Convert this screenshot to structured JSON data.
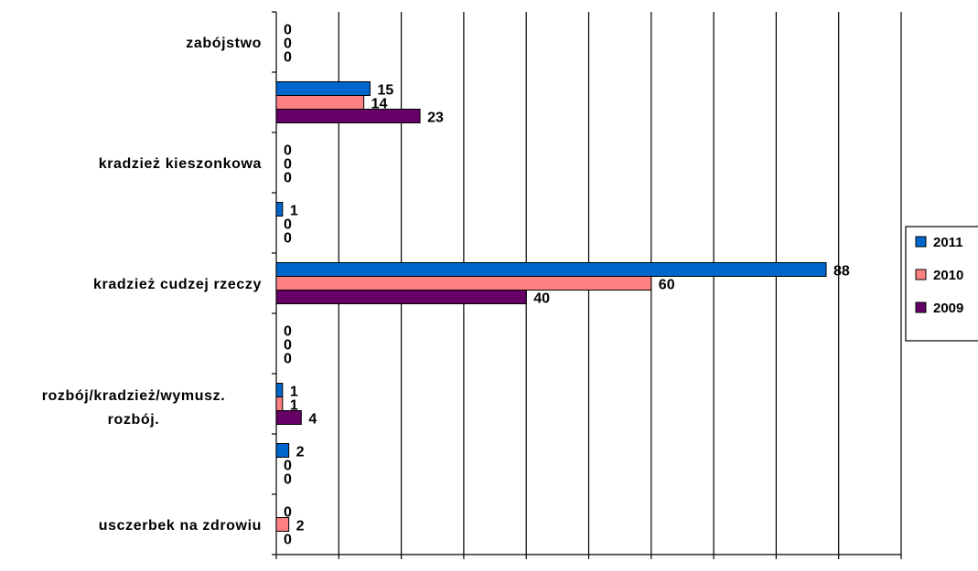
{
  "chart_data": {
    "type": "bar",
    "orientation": "horizontal",
    "title": "",
    "xlabel": "",
    "ylabel": "",
    "xlim": [
      0,
      100
    ],
    "x_ticks": [
      0,
      10,
      20,
      30,
      40,
      50,
      60,
      70,
      80,
      90,
      100
    ],
    "grid": "vertical",
    "legend_position": "right",
    "categories": [
      "zabójstwo",
      "",
      "kradzież kieszonkowa",
      "",
      "kradzież cudzej rzeczy",
      "",
      "rozbój/kradzież/wymusz. rozbój.",
      "",
      "usczerbek na zdrowiu"
    ],
    "series": [
      {
        "name": "2011",
        "color": "#0066cc",
        "values": [
          0,
          15,
          0,
          1,
          88,
          0,
          1,
          2,
          0
        ]
      },
      {
        "name": "2010",
        "color": "#ff8080",
        "values": [
          0,
          14,
          0,
          0,
          60,
          0,
          1,
          0,
          2
        ]
      },
      {
        "name": "2009",
        "color": "#660066",
        "values": [
          0,
          23,
          0,
          0,
          40,
          0,
          4,
          0,
          0
        ]
      }
    ]
  }
}
